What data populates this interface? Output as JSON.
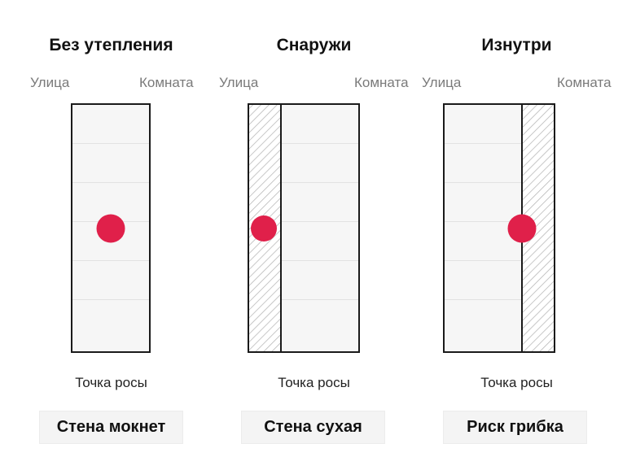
{
  "colors": {
    "dew_point_dot": "#e0204a",
    "wall_fill": "#f6f6f6",
    "wall_stroke": "#1a1a1a",
    "insulation_hatch": "#b5b5b5",
    "result_bg": "#f4f4f4"
  },
  "panels": [
    {
      "title": "Без утепления",
      "left_label": "Улица",
      "right_label": "Комната",
      "insulation": "none",
      "dew_label": "Точка росы",
      "result": "Стена мокнет"
    },
    {
      "title": "Снаружи",
      "left_label": "Улица",
      "right_label": "Комната",
      "insulation": "outside",
      "dew_label": "Точка росы",
      "result": "Стена сухая"
    },
    {
      "title": "Изнутри",
      "left_label": "Улица",
      "right_label": "Комната",
      "insulation": "inside",
      "dew_label": "Точка росы",
      "result": "Риск грибка"
    }
  ]
}
